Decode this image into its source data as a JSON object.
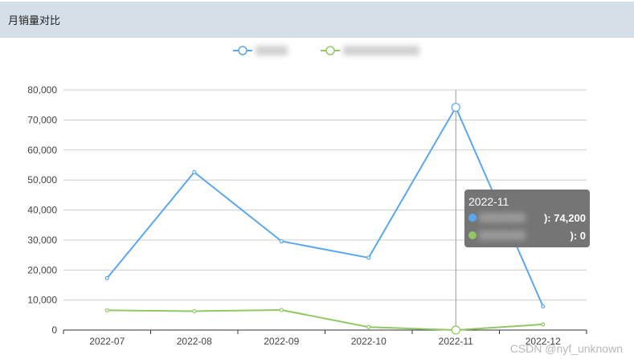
{
  "header": {
    "title": "月销量对比"
  },
  "watermark": "CSDN @nyf_unknown",
  "colors": {
    "series1": "#5aa7ef",
    "series2": "#91c864",
    "tooltip_bg": "#6f6f6f"
  },
  "chart_data": {
    "type": "line",
    "categories": [
      "2022-07",
      "2022-08",
      "2022-09",
      "2022-10",
      "2022-11",
      "2022-12"
    ],
    "series": [
      {
        "name": "",
        "values": [
          17300,
          52600,
          29600,
          24100,
          74200,
          7900
        ]
      },
      {
        "name": "",
        "values": [
          6600,
          6300,
          6700,
          1000,
          0,
          1900
        ]
      }
    ],
    "ylim": [
      0,
      80000
    ],
    "yticks": [
      "0",
      "10,000",
      "20,000",
      "30,000",
      "40,000",
      "50,000",
      "60,000",
      "70,000",
      "80,000"
    ],
    "grid": true,
    "legend": "top-center",
    "tooltip": {
      "title": "2022-11",
      "rows": [
        {
          "value_text": "): 74,200"
        },
        {
          "value_text": "): 0"
        }
      ]
    }
  }
}
